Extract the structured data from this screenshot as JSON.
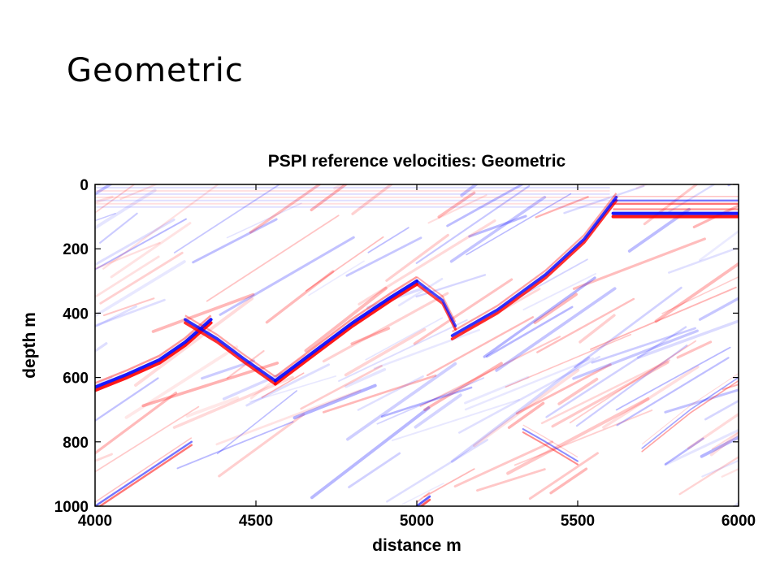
{
  "slide": {
    "title": "Geometric"
  },
  "chart_data": {
    "type": "heatmap",
    "title": "PSPI reference velocities: Geometric",
    "xlabel": "distance m",
    "ylabel": "depth m",
    "xlim": [
      4000,
      6000
    ],
    "ylim": [
      0,
      1000
    ],
    "y_inverted": true,
    "x_ticks": [
      4000,
      4500,
      5000,
      5500,
      6000
    ],
    "y_ticks": [
      0,
      200,
      400,
      600,
      800,
      1000
    ],
    "colormap": {
      "negative": "#0000ff",
      "zero": "#ffffff",
      "positive": "#ff0000"
    },
    "reflectors": [
      {
        "points": [
          [
            4000,
            630
          ],
          [
            4100,
            590
          ],
          [
            4200,
            545
          ],
          [
            4280,
            490
          ],
          [
            4360,
            420
          ]
        ],
        "strength": 1.0
      },
      {
        "points": [
          [
            4280,
            420
          ],
          [
            4380,
            480
          ],
          [
            4460,
            540
          ],
          [
            4560,
            610
          ]
        ],
        "strength": 0.9
      },
      {
        "points": [
          [
            4560,
            610
          ],
          [
            4680,
            520
          ],
          [
            4800,
            430
          ],
          [
            4920,
            350
          ],
          [
            5000,
            300
          ]
        ],
        "strength": 1.0
      },
      {
        "points": [
          [
            5000,
            300
          ],
          [
            5080,
            360
          ],
          [
            5120,
            440
          ]
        ],
        "strength": 0.8
      },
      {
        "points": [
          [
            5110,
            470
          ],
          [
            5250,
            390
          ],
          [
            5400,
            280
          ],
          [
            5520,
            170
          ],
          [
            5620,
            40
          ]
        ],
        "strength": 0.9
      },
      {
        "points": [
          [
            5610,
            90
          ],
          [
            6000,
            90
          ]
        ],
        "strength": 1.0
      },
      {
        "points": [
          [
            5610,
            50
          ],
          [
            6000,
            50
          ]
        ],
        "strength": 0.6
      },
      {
        "points": [
          [
            5000,
            1000
          ],
          [
            5040,
            970
          ]
        ],
        "strength": 0.7
      },
      {
        "points": [
          [
            4000,
            1000
          ],
          [
            4150,
            900
          ],
          [
            4300,
            800
          ]
        ],
        "strength": 0.6
      },
      {
        "points": [
          [
            5330,
            760
          ],
          [
            5400,
            800
          ],
          [
            5500,
            860
          ]
        ],
        "strength": 0.5
      },
      {
        "points": [
          [
            5700,
            820
          ],
          [
            5850,
            700
          ],
          [
            6000,
            600
          ]
        ],
        "strength": 0.4
      }
    ]
  }
}
